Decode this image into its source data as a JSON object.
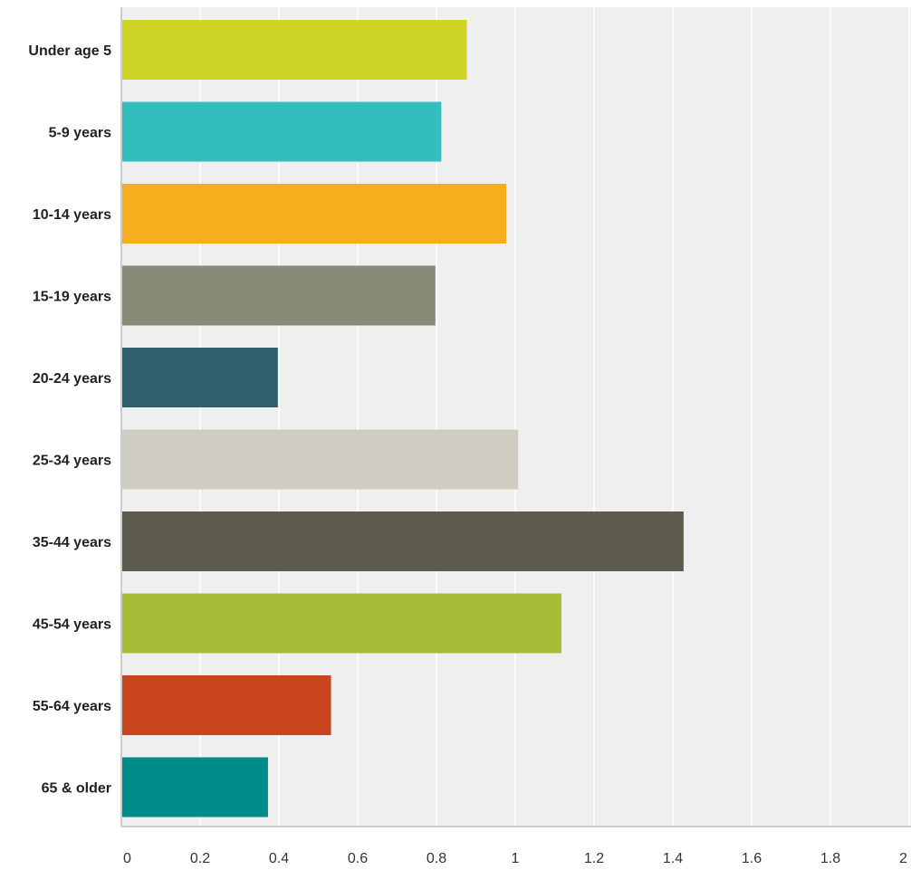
{
  "chart_data": {
    "type": "bar",
    "orientation": "horizontal",
    "categories": [
      "Under age 5",
      "5-9 years",
      "10-14 years",
      "15-19 years",
      "20-24 years",
      "25-34 years",
      "35-44 years",
      "45-54 years",
      "55-64 years",
      "65 & older"
    ],
    "values": [
      0.875,
      0.81,
      0.975,
      0.795,
      0.395,
      1.005,
      1.425,
      1.115,
      0.53,
      0.37
    ],
    "colors": [
      "#ced425",
      "#33bdbd",
      "#f6ae1f",
      "#8a8a79",
      "#2e5f6d",
      "#cfcdc1",
      "#5c5b4e",
      "#a8bd37",
      "#c9451d",
      "#008a8a"
    ],
    "ticks": [
      "0",
      "0.2",
      "0.4",
      "0.6",
      "0.8",
      "1",
      "1.2",
      "1.4",
      "1.6",
      "1.8",
      "2"
    ],
    "xlim": [
      0,
      2
    ],
    "grid": true,
    "background": "#efefef",
    "gridline_color": "#ffffff",
    "axis_color": "#cccccc"
  }
}
